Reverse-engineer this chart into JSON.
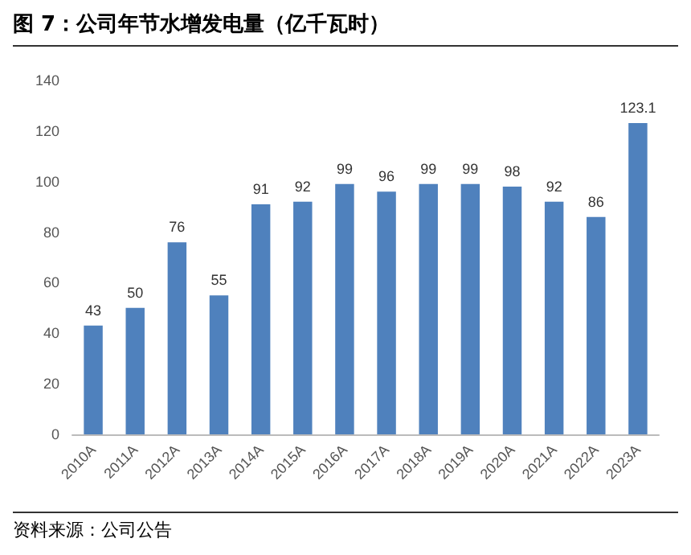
{
  "chart_data": {
    "type": "bar",
    "title": "图 7：公司年节水增发电量（亿千瓦时）",
    "categories": [
      "2010A",
      "2011A",
      "2012A",
      "2013A",
      "2014A",
      "2015A",
      "2016A",
      "2017A",
      "2018A",
      "2019A",
      "2020A",
      "2021A",
      "2022A",
      "2023A"
    ],
    "values": [
      43,
      50,
      76,
      55,
      91,
      92,
      99,
      96,
      99,
      99,
      98,
      92,
      86,
      123.1
    ],
    "color": "#4f81bd",
    "ylim": [
      0,
      140
    ],
    "yticks": [
      0,
      20,
      40,
      60,
      80,
      100,
      120,
      140
    ],
    "grid": false,
    "data_labels": true,
    "annotations": [
      "资料来源：公司公告"
    ]
  }
}
